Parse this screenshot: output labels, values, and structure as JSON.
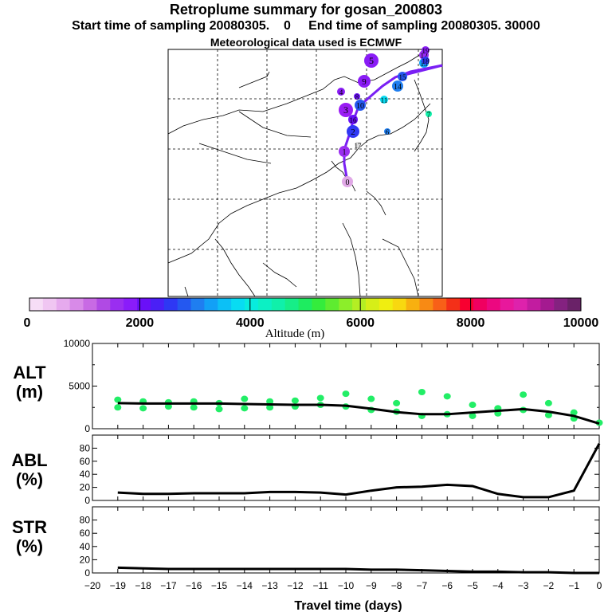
{
  "header": {
    "title": "Retroplume summary for gosan_200803",
    "sampling": "Start time of sampling 20080305.    0     End time of sampling 20080305. 30000",
    "met": "Meteorological data used is ECMWF"
  },
  "colorbar": {
    "colors": [
      "#f6ddf6",
      "#f0c6f2",
      "#e6aaee",
      "#d88ae8",
      "#c86ae4",
      "#b04ae4",
      "#9a2ef0",
      "#8a1cfa",
      "#6a10f8",
      "#4a20f6",
      "#2e38f4",
      "#2458f0",
      "#1f7ef0",
      "#12a0f6",
      "#0cc0f6",
      "#08dcf2",
      "#08ecde",
      "#0cf0c4",
      "#10f0aa",
      "#16ee88",
      "#1eec60",
      "#34ec3c",
      "#5eec30",
      "#8cee2a",
      "#b4ee24",
      "#d6ee18",
      "#f0ee10",
      "#f8d810",
      "#f8b010",
      "#f88a14",
      "#f86018",
      "#f43018",
      "#f80030",
      "#f00060",
      "#ec0880",
      "#e8189c",
      "#de22ac",
      "#c21ca0",
      "#a41a90",
      "#842280",
      "#6a2268"
    ],
    "tick_labels": [
      "0",
      "2000",
      "4000",
      "6000",
      "8000",
      "10000"
    ],
    "label": "Altitude (m)"
  },
  "map": {
    "trajectory_labels": [
      "0",
      "1",
      "2",
      "3",
      "4",
      "5",
      "6",
      "7",
      "8",
      "9",
      "10",
      "11",
      "12",
      "13",
      "14",
      "15",
      "16",
      "17",
      "18",
      "19"
    ]
  },
  "panels": {
    "alt_label": [
      "ALT",
      "(m)"
    ],
    "abl_label": [
      "ABL",
      "(%)"
    ],
    "str_label": [
      "STR",
      "(%)"
    ],
    "xlabel": "Travel time (days)"
  },
  "chart_data": [
    {
      "type": "line",
      "title": "ALT",
      "ylabel": "ALT (m)",
      "x": [
        -19,
        -18,
        -17,
        -16,
        -15,
        -14,
        -13,
        -12,
        -11,
        -10,
        -9,
        -8,
        -7,
        -6,
        -5,
        -4,
        -3,
        -2,
        -1,
        0
      ],
      "values": [
        3000,
        2950,
        2950,
        2950,
        2950,
        2900,
        2850,
        2800,
        2800,
        2700,
        2350,
        1950,
        1700,
        1700,
        1900,
        2100,
        2300,
        2000,
        1500,
        600
      ],
      "ylim": [
        0,
        10000
      ],
      "yticks": [
        0,
        5000,
        10000
      ],
      "scatter": [
        {
          "x": -19,
          "y": 3400
        },
        {
          "x": -19,
          "y": 2500
        },
        {
          "x": -18,
          "y": 3200
        },
        {
          "x": -18,
          "y": 2400
        },
        {
          "x": -17,
          "y": 3100
        },
        {
          "x": -17,
          "y": 2600
        },
        {
          "x": -16,
          "y": 3200
        },
        {
          "x": -16,
          "y": 2500
        },
        {
          "x": -15,
          "y": 3000
        },
        {
          "x": -15,
          "y": 2300
        },
        {
          "x": -14,
          "y": 3500
        },
        {
          "x": -14,
          "y": 2400
        },
        {
          "x": -13,
          "y": 3200
        },
        {
          "x": -13,
          "y": 2500
        },
        {
          "x": -12,
          "y": 3300
        },
        {
          "x": -12,
          "y": 2600
        },
        {
          "x": -11,
          "y": 3600
        },
        {
          "x": -11,
          "y": 2800
        },
        {
          "x": -10,
          "y": 4100
        },
        {
          "x": -10,
          "y": 2600
        },
        {
          "x": -9,
          "y": 3500
        },
        {
          "x": -9,
          "y": 2200
        },
        {
          "x": -8,
          "y": 3000
        },
        {
          "x": -8,
          "y": 2000
        },
        {
          "x": -7,
          "y": 4300
        },
        {
          "x": -7,
          "y": 1500
        },
        {
          "x": -6,
          "y": 3800
        },
        {
          "x": -6,
          "y": 1700
        },
        {
          "x": -5,
          "y": 2800
        },
        {
          "x": -5,
          "y": 1500
        },
        {
          "x": -4,
          "y": 2400
        },
        {
          "x": -4,
          "y": 1800
        },
        {
          "x": -3,
          "y": 4000
        },
        {
          "x": -3,
          "y": 2200
        },
        {
          "x": -2,
          "y": 3000
        },
        {
          "x": -2,
          "y": 1600
        },
        {
          "x": -1,
          "y": 1900
        },
        {
          "x": -1,
          "y": 1200
        },
        {
          "x": 0,
          "y": 700
        }
      ]
    },
    {
      "type": "line",
      "title": "ABL",
      "ylabel": "ABL (%)",
      "x": [
        -19,
        -18,
        -17,
        -16,
        -15,
        -14,
        -13,
        -12,
        -11,
        -10,
        -9,
        -8,
        -7,
        -6,
        -5,
        -4,
        -3,
        -2,
        -1,
        0
      ],
      "values": [
        12,
        10,
        10,
        11,
        11,
        11,
        13,
        13,
        12,
        9,
        15,
        20,
        21,
        24,
        22,
        10,
        5,
        5,
        15,
        87
      ],
      "ylim": [
        0,
        100
      ],
      "yticks": [
        0,
        20,
        40,
        60,
        80
      ]
    },
    {
      "type": "line",
      "title": "STR",
      "ylabel": "STR (%)",
      "x": [
        -19,
        -18,
        -17,
        -16,
        -15,
        -14,
        -13,
        -12,
        -11,
        -10,
        -9,
        -8,
        -7,
        -6,
        -5,
        -4,
        -3,
        -2,
        -1,
        0
      ],
      "values": [
        8,
        7,
        6,
        6,
        6,
        6,
        6,
        6,
        6,
        6,
        5,
        5,
        4,
        3,
        2,
        2,
        1,
        1,
        0,
        0
      ],
      "ylim": [
        0,
        100
      ],
      "yticks": [
        0,
        20,
        40,
        60,
        80
      ],
      "xlabel": "Travel time (days)",
      "xticks": [
        -20,
        -19,
        -18,
        -17,
        -16,
        -15,
        -14,
        -13,
        -12,
        -11,
        -10,
        -9,
        -8,
        -7,
        -6,
        -5,
        -4,
        -3,
        -2,
        -1,
        0
      ],
      "xtick_labels": [
        "−20",
        "−19",
        "−18",
        "−17",
        "−16",
        "−15",
        "−14",
        "−13",
        "−12",
        "−11",
        "−10",
        "−9",
        "−8",
        "−7",
        "−6",
        "−5",
        "−4",
        "−3",
        "−2",
        "−1",
        "0"
      ]
    }
  ]
}
